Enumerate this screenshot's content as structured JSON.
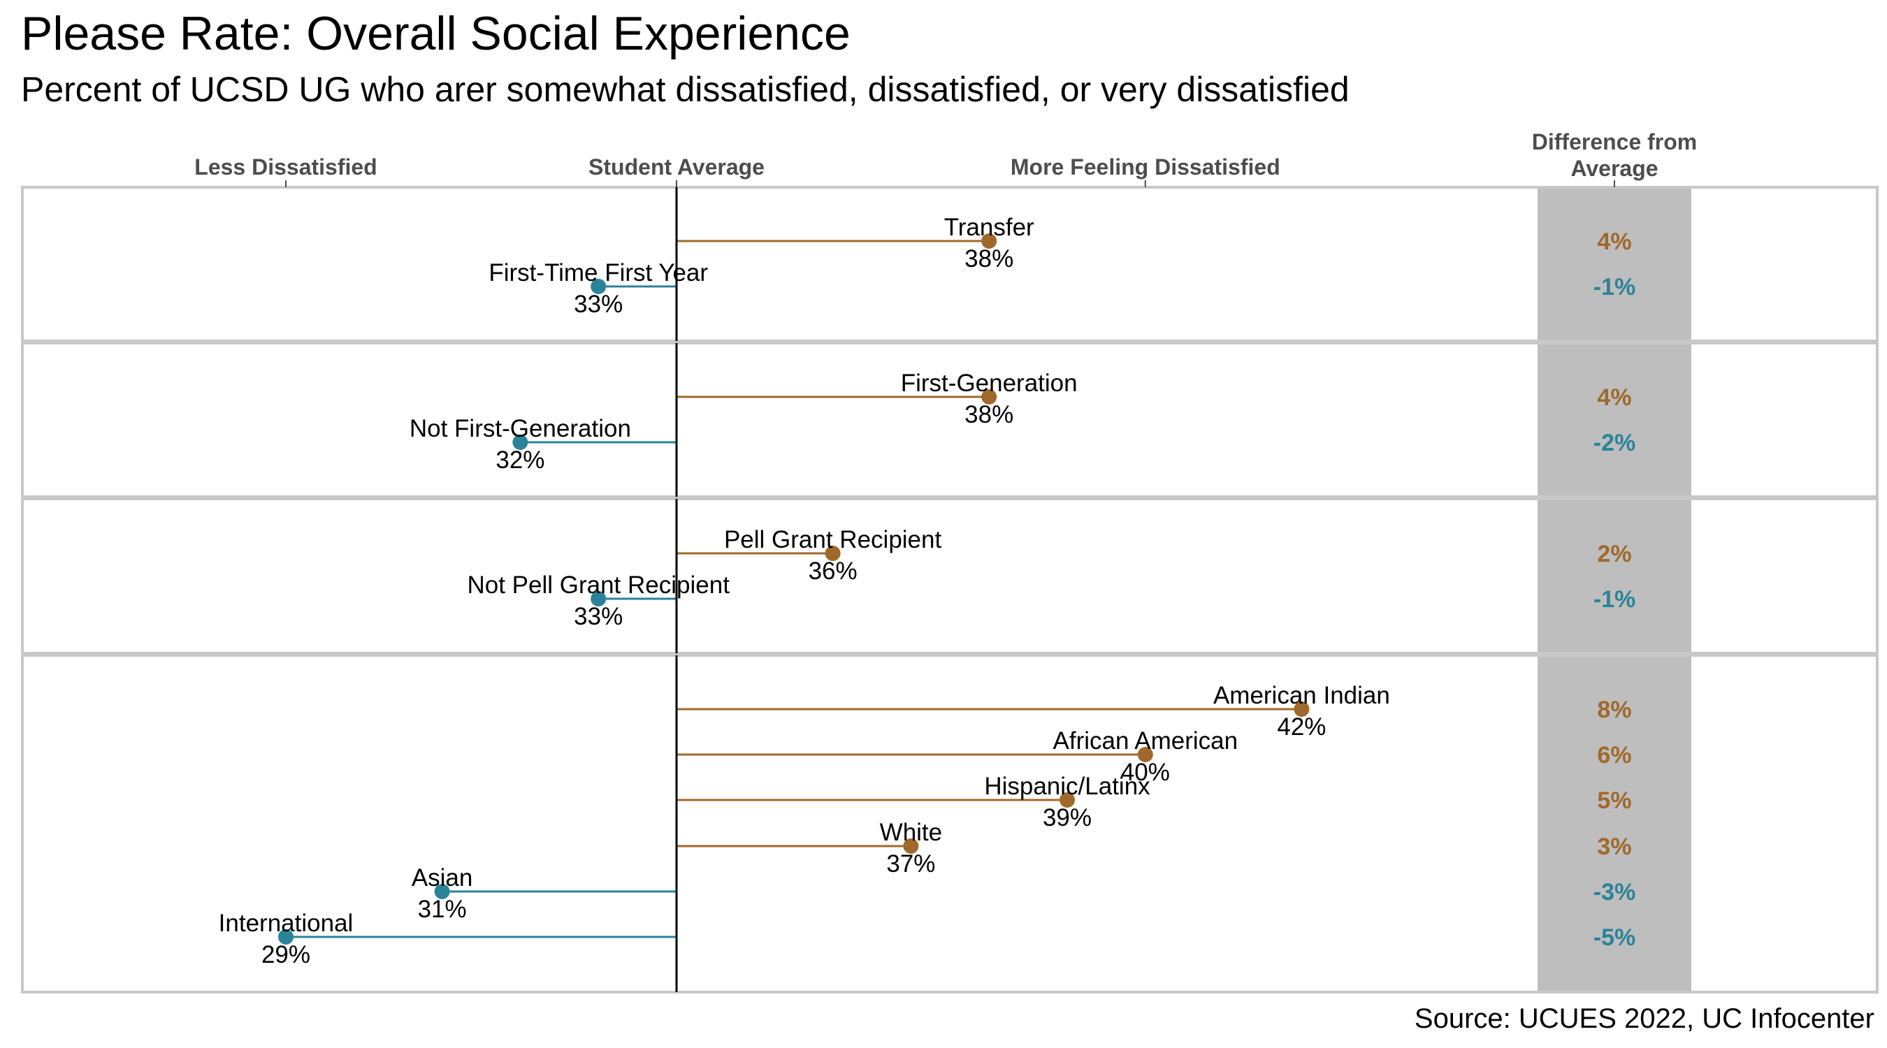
{
  "chart_data": {
    "type": "lollipop",
    "title": "Please Rate: Overall Social Experience",
    "subtitle": "Percent of UCSD UG who arer somewhat dissatisfied, dissatisfied, or very dissatisfied",
    "source": "Source: UCUES 2022, UC Infocenter",
    "baseline": 34,
    "x_range": [
      26,
      45
    ],
    "axis_headers": [
      {
        "label": "Less Dissatisfied",
        "x": 29
      },
      {
        "label": "Student Average",
        "x": 34
      },
      {
        "label": "More Feeling Dissatisfied",
        "x": 40
      }
    ],
    "diff_header": "Difference from\nAverage",
    "colors": {
      "above": "#a0692b",
      "below": "#2a8399",
      "panel_border": "#c8c8c8",
      "diff_band": "#bebebe",
      "baseline": "#000000"
    },
    "groups": [
      {
        "points": [
          {
            "name": "Transfer",
            "value": 38,
            "value_label": "38%",
            "diff": "4%"
          },
          {
            "name": "First-Time First Year",
            "value": 33,
            "value_label": "33%",
            "diff": "-1%"
          }
        ]
      },
      {
        "points": [
          {
            "name": "First-Generation",
            "value": 38,
            "value_label": "38%",
            "diff": "4%"
          },
          {
            "name": "Not First-Generation",
            "value": 32,
            "value_label": "32%",
            "diff": "-2%"
          }
        ]
      },
      {
        "points": [
          {
            "name": "Pell Grant Recipient",
            "value": 36,
            "value_label": "36%",
            "diff": "2%"
          },
          {
            "name": "Not Pell Grant Recipient",
            "value": 33,
            "value_label": "33%",
            "diff": "-1%"
          }
        ]
      },
      {
        "points": [
          {
            "name": "American Indian",
            "value": 42,
            "value_label": "42%",
            "diff": "8%"
          },
          {
            "name": "African American",
            "value": 40,
            "value_label": "40%",
            "diff": "6%"
          },
          {
            "name": "Hispanic/Latinx",
            "value": 39,
            "value_label": "39%",
            "diff": "5%"
          },
          {
            "name": "White",
            "value": 37,
            "value_label": "37%",
            "diff": "3%"
          },
          {
            "name": "Asian",
            "value": 31,
            "value_label": "31%",
            "diff": "-3%"
          },
          {
            "name": "International",
            "value": 29,
            "value_label": "29%",
            "diff": "-5%"
          }
        ]
      }
    ]
  }
}
